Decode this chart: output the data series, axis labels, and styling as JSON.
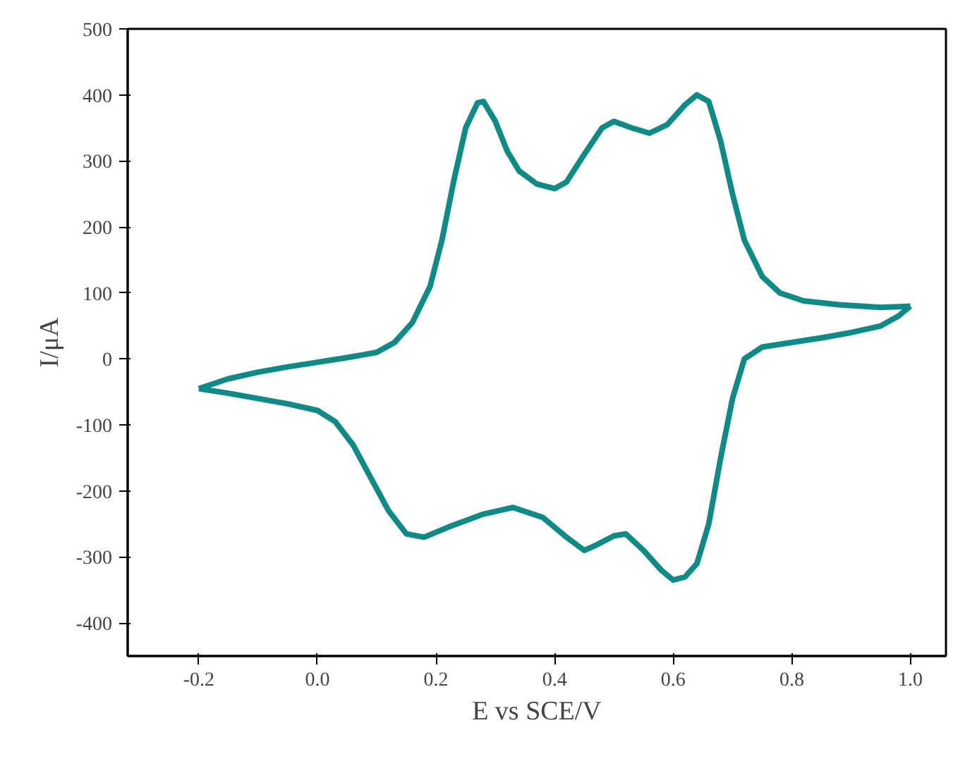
{
  "chart_data": {
    "type": "line",
    "xlabel": "E vs SCE/V",
    "ylabel": "I/μA",
    "xlim": [
      -0.32,
      1.06
    ],
    "ylim": [
      -450,
      500
    ],
    "xticks": [
      {
        "value": -0.2,
        "label": "-0.2"
      },
      {
        "value": 0,
        "label": "0.0"
      },
      {
        "value": 0.2,
        "label": "0.2"
      },
      {
        "value": 0.4,
        "label": "0.4"
      },
      {
        "value": 0.6,
        "label": "0.6"
      },
      {
        "value": 0.8,
        "label": "0.8"
      },
      {
        "value": 1,
        "label": "1.0"
      }
    ],
    "yticks": [
      -400,
      -300,
      -200,
      -100,
      0,
      100,
      200,
      300,
      400,
      500
    ],
    "grid": false,
    "marker": "none",
    "line_style": "solid",
    "series": [
      {
        "color": "#0f8a86",
        "x": [
          -0.2,
          -0.15,
          -0.1,
          -0.05,
          0,
          0.05,
          0.1,
          0.13,
          0.16,
          0.19,
          0.21,
          0.23,
          0.25,
          0.27,
          0.28,
          0.3,
          0.32,
          0.34,
          0.37,
          0.4,
          0.42,
          0.45,
          0.48,
          0.5,
          0.53,
          0.56,
          0.59,
          0.62,
          0.64,
          0.66,
          0.68,
          0.7,
          0.72,
          0.75,
          0.78,
          0.82,
          0.88,
          0.95,
          1.0
        ],
        "values": [
          -45,
          -30,
          -20,
          -12,
          -5,
          2,
          10,
          25,
          55,
          110,
          180,
          270,
          350,
          388,
          390,
          360,
          315,
          285,
          265,
          258,
          268,
          310,
          350,
          360,
          350,
          342,
          355,
          385,
          400,
          390,
          330,
          250,
          180,
          125,
          100,
          88,
          82,
          78,
          80
        ]
      },
      {
        "color": "#0f8a86",
        "x": [
          1.0,
          0.98,
          0.95,
          0.9,
          0.85,
          0.8,
          0.75,
          0.72,
          0.7,
          0.68,
          0.66,
          0.64,
          0.62,
          0.6,
          0.58,
          0.55,
          0.52,
          0.5,
          0.47,
          0.45,
          0.42,
          0.38,
          0.33,
          0.28,
          0.22,
          0.18,
          0.15,
          0.12,
          0.09,
          0.06,
          0.03,
          0,
          -0.05,
          -0.1,
          -0.15,
          -0.2
        ],
        "values": [
          80,
          65,
          50,
          40,
          32,
          25,
          18,
          0,
          -60,
          -150,
          -250,
          -310,
          -330,
          -335,
          -320,
          -290,
          -265,
          -268,
          -282,
          -290,
          -270,
          -240,
          -225,
          -235,
          -255,
          -270,
          -265,
          -230,
          -180,
          -130,
          -95,
          -78,
          -68,
          -60,
          -52,
          -45
        ]
      }
    ]
  }
}
